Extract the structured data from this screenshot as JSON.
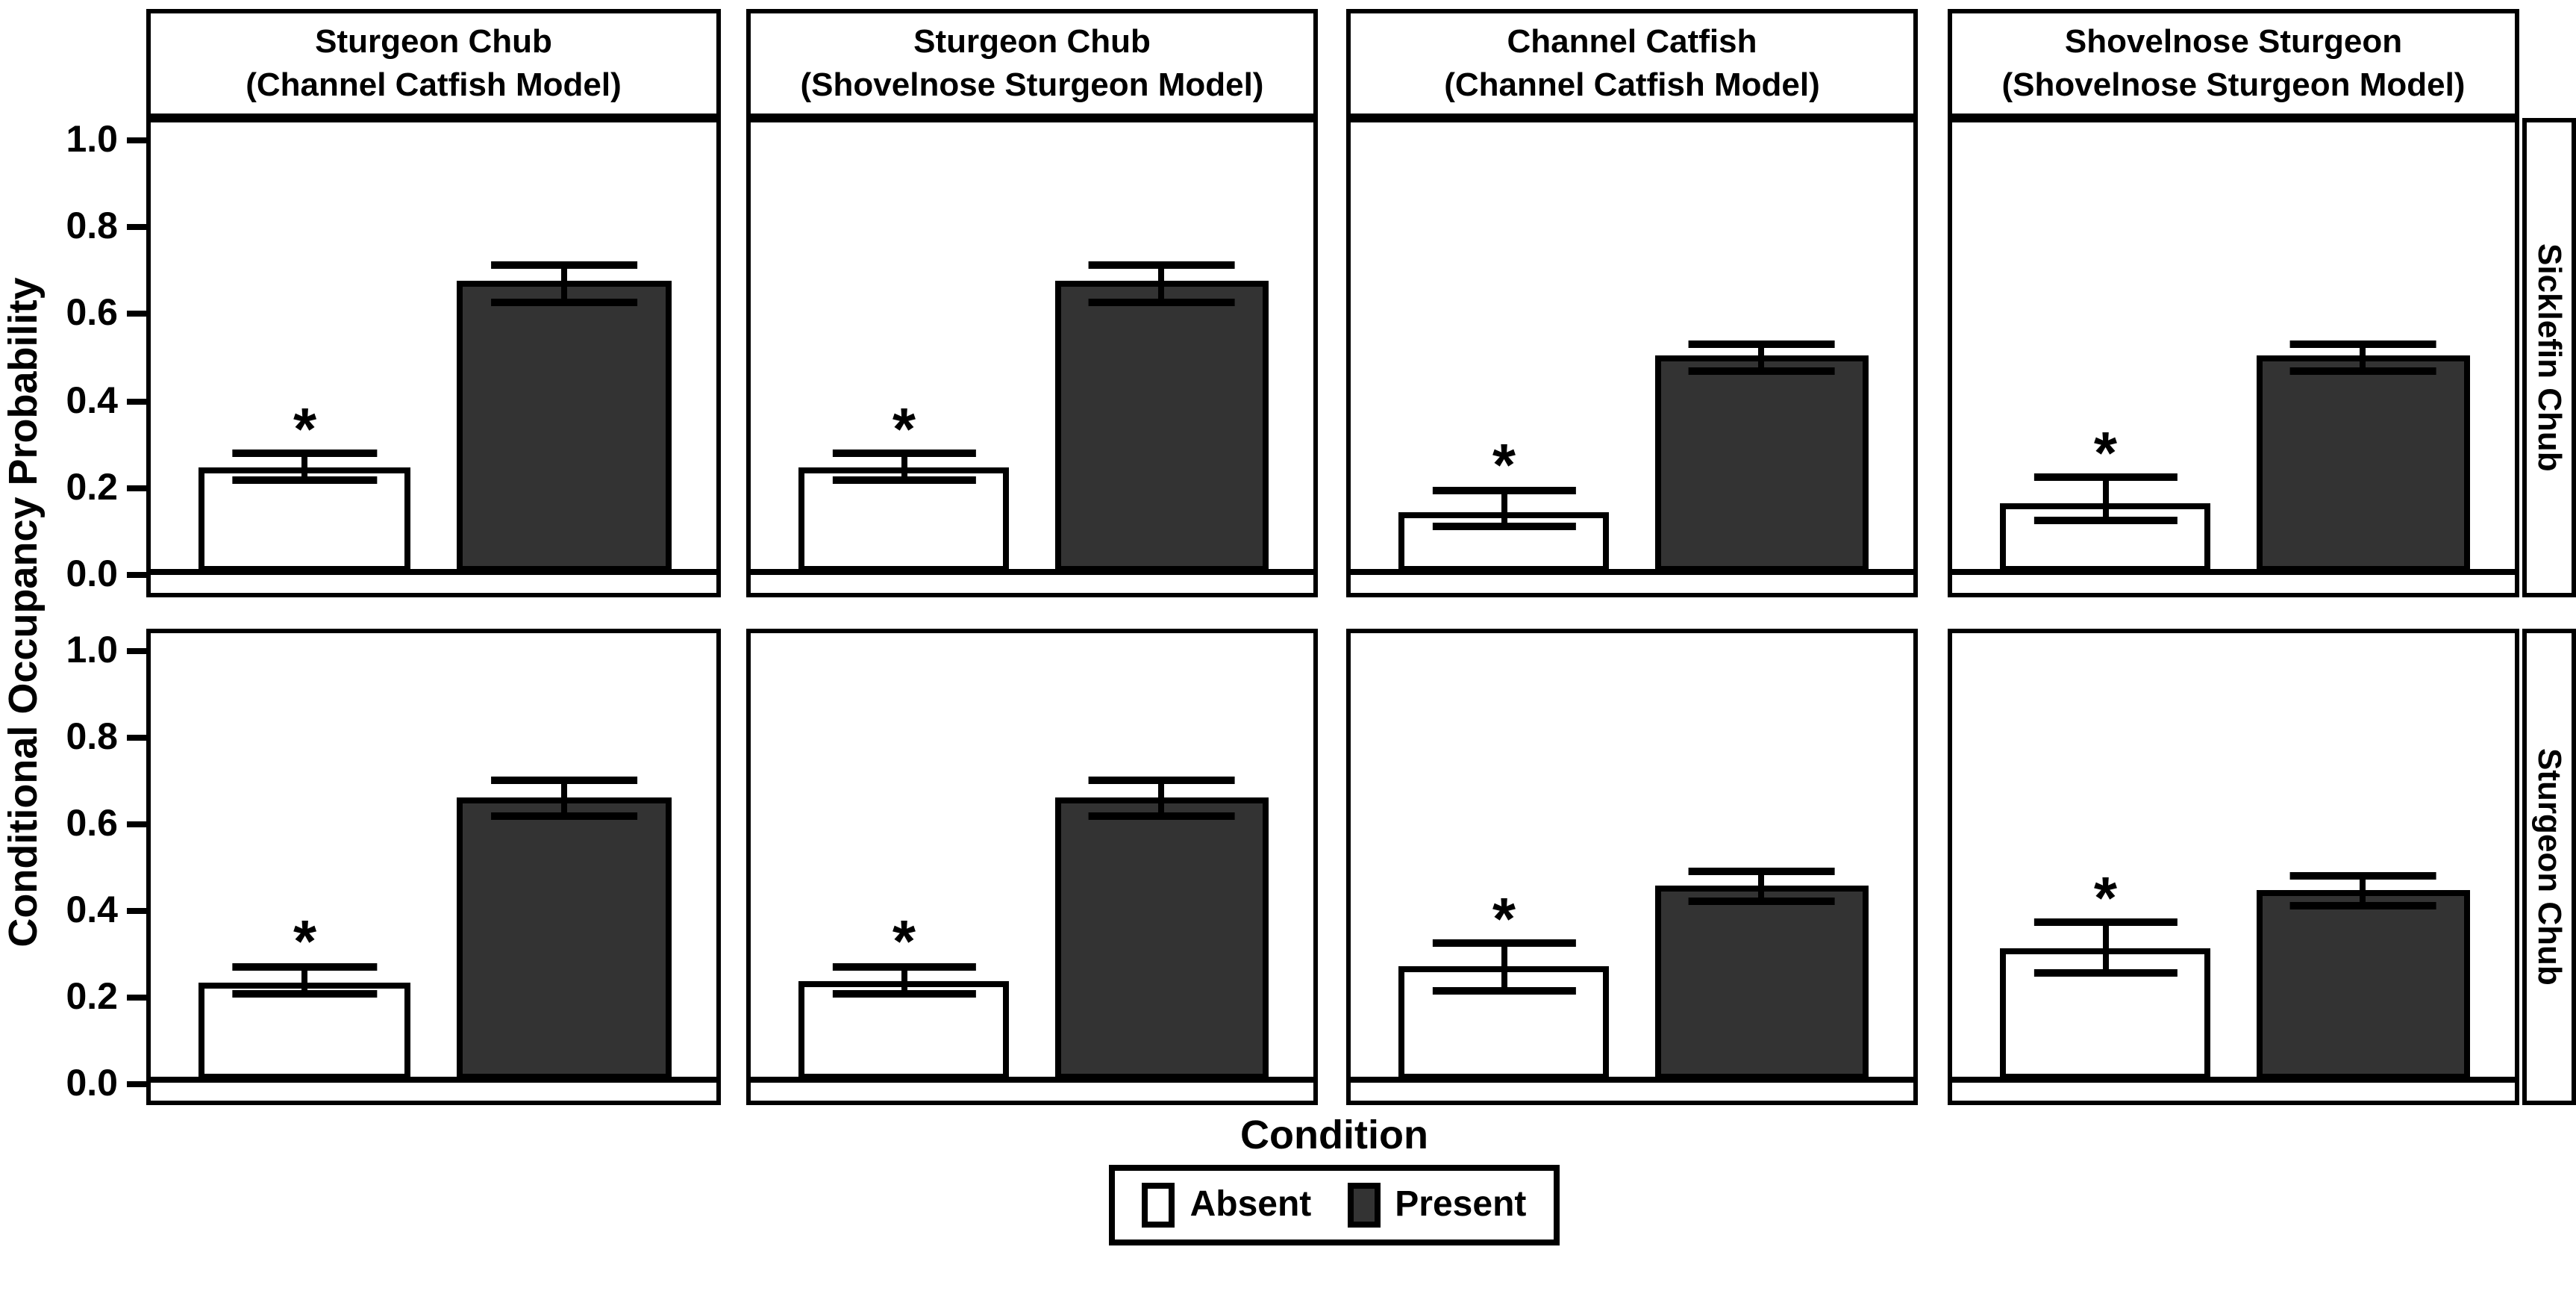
{
  "chart_data": {
    "type": "bar",
    "title": "",
    "xlabel": "Condition",
    "ylabel": "Conditional Occupancy Probability",
    "ylim": [
      -0.05,
      1.05
    ],
    "yticks": [
      1.0,
      0.8,
      0.6,
      0.4,
      0.2,
      0.0
    ],
    "grid": false,
    "bar_colors": {
      "absent": "#ffffff",
      "present": "#333333"
    },
    "legend": {
      "title": "Condition",
      "position": "bottom",
      "entries": [
        {
          "label": "Absent",
          "fill": "#ffffff"
        },
        {
          "label": "Present",
          "fill": "#333333"
        }
      ]
    },
    "facet_rows": [
      "Sicklefin Chub",
      "Sturgeon Chub"
    ],
    "facet_cols": [
      {
        "line1": "Sturgeon Chub",
        "line2": "(Channel Catfish Model)"
      },
      {
        "line1": "Sturgeon Chub",
        "line2": "(Shovelnose Sturgeon Model)"
      },
      {
        "line1": "Channel Catfish",
        "line2": "(Channel Catfish Model)"
      },
      {
        "line1": "Shovelnose Sturgeon",
        "line2": "(Shovelnose Sturgeon Model)"
      }
    ],
    "categories": [
      "Absent",
      "Present"
    ],
    "significance_marker": "*",
    "panels": [
      {
        "row": "Sicklefin Chub",
        "col": "Sturgeon Chub (Channel Catfish Model)",
        "absent": {
          "value": 0.245,
          "lo": 0.215,
          "hi": 0.275,
          "sig": true
        },
        "present": {
          "value": 0.68,
          "lo": 0.63,
          "hi": 0.715,
          "sig": false
        }
      },
      {
        "row": "Sicklefin Chub",
        "col": "Sturgeon Chub (Shovelnose Sturgeon Model)",
        "absent": {
          "value": 0.245,
          "lo": 0.215,
          "hi": 0.275,
          "sig": true
        },
        "present": {
          "value": 0.68,
          "lo": 0.63,
          "hi": 0.715,
          "sig": false
        }
      },
      {
        "row": "Sicklefin Chub",
        "col": "Channel Catfish (Channel Catfish Model)",
        "absent": {
          "value": 0.14,
          "lo": 0.105,
          "hi": 0.19,
          "sig": true
        },
        "present": {
          "value": 0.505,
          "lo": 0.47,
          "hi": 0.53,
          "sig": false
        }
      },
      {
        "row": "Sicklefin Chub",
        "col": "Shovelnose Sturgeon (Shovelnose Sturgeon Model)",
        "absent": {
          "value": 0.16,
          "lo": 0.12,
          "hi": 0.22,
          "sig": true
        },
        "present": {
          "value": 0.505,
          "lo": 0.47,
          "hi": 0.53,
          "sig": false
        }
      },
      {
        "row": "Sturgeon Chub",
        "col": "Sturgeon Chub (Channel Catfish Model)",
        "absent": {
          "value": 0.228,
          "lo": 0.2,
          "hi": 0.265,
          "sig": true
        },
        "present": {
          "value": 0.665,
          "lo": 0.62,
          "hi": 0.705,
          "sig": false
        }
      },
      {
        "row": "Sturgeon Chub",
        "col": "Sturgeon Chub (Shovelnose Sturgeon Model)",
        "absent": {
          "value": 0.23,
          "lo": 0.2,
          "hi": 0.265,
          "sig": true
        },
        "present": {
          "value": 0.665,
          "lo": 0.62,
          "hi": 0.705,
          "sig": false
        }
      },
      {
        "row": "Sturgeon Chub",
        "col": "Channel Catfish (Channel Catfish Model)",
        "absent": {
          "value": 0.265,
          "lo": 0.21,
          "hi": 0.32,
          "sig": true
        },
        "present": {
          "value": 0.455,
          "lo": 0.42,
          "hi": 0.49,
          "sig": false
        }
      },
      {
        "row": "Sturgeon Chub",
        "col": "Shovelnose Sturgeon (Shovelnose Sturgeon Model)",
        "absent": {
          "value": 0.31,
          "lo": 0.25,
          "hi": 0.37,
          "sig": true
        },
        "present": {
          "value": 0.445,
          "lo": 0.41,
          "hi": 0.48,
          "sig": false
        }
      }
    ]
  }
}
